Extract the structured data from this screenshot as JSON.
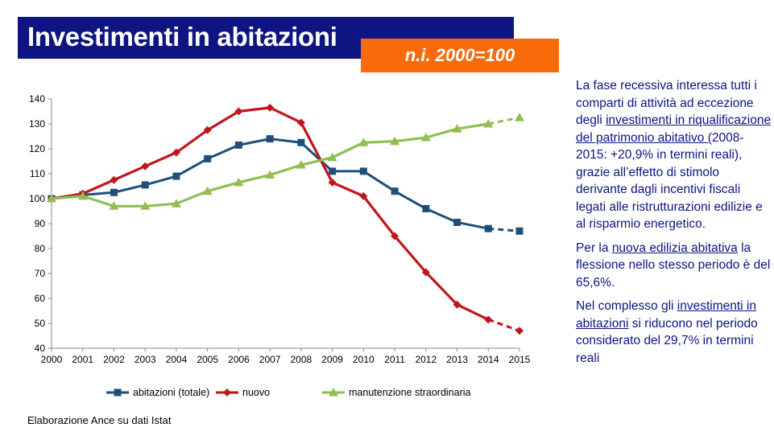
{
  "title": "Investimenti in abitazioni",
  "badge": "n.i. 2000=100",
  "source": "Elaborazione Ance su dati Istat",
  "chart_data": {
    "type": "line",
    "x": [
      "2000",
      "2001",
      "2002",
      "2003",
      "2004",
      "2005",
      "2006",
      "2007",
      "2008",
      "2009",
      "2010",
      "2011",
      "2012",
      "2013",
      "2014",
      "2015"
    ],
    "ylim": [
      40,
      140
    ],
    "yticks": [
      40,
      50,
      60,
      70,
      80,
      90,
      100,
      110,
      120,
      130,
      140
    ],
    "grid": false,
    "legend_position": "bottom",
    "dashed_last_segment": true,
    "series": [
      {
        "name": "abitazioni (totale)",
        "color": "#1f4e79",
        "marker": "square",
        "values": [
          100,
          101.5,
          102.5,
          105.5,
          109,
          116,
          121.5,
          124,
          122.5,
          111,
          111,
          103,
          96,
          90.5,
          88,
          87
        ]
      },
      {
        "name": "nuovo",
        "color": "#c0161b",
        "marker": "diamond",
        "values": [
          100,
          102,
          107.5,
          113,
          118.5,
          127.5,
          135,
          136.5,
          130.5,
          106.5,
          101,
          85,
          70.5,
          57.5,
          51.5,
          47
        ]
      },
      {
        "name": "manutenzione straordinaria",
        "color": "#8fbf50",
        "marker": "triangle",
        "values": [
          100,
          101,
          97,
          97,
          98,
          103,
          106.5,
          109.5,
          113.5,
          116.5,
          122.5,
          123,
          124.5,
          128,
          130,
          132.5
        ]
      }
    ]
  },
  "side_text": {
    "p1": {
      "a": "La fase recessiva interessa tutti i comparti di attività ad eccezione degli ",
      "link": "investimenti in riqualificazione del patrimonio abitativo (",
      "b": "2008-2015: +20,9% in termini reali), grazie all’effetto di stimolo derivante dagli incentivi fiscali legati alle ristrutturazioni edilizie e al risparmio energetico."
    },
    "p2": {
      "a": "Per la ",
      "link": "nuova edilizia abitativa",
      "b": " la flessione nello stesso periodo è del 65,6%."
    },
    "p3": {
      "a": "Nel complesso gli ",
      "link": "investimenti in abitazioni",
      "b": " si riducono nel periodo considerato del 29,7% in termini reali"
    }
  }
}
